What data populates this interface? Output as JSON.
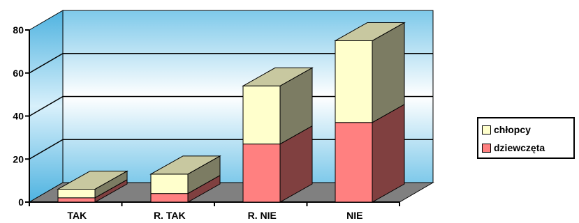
{
  "chart_data": {
    "type": "bar",
    "stacked": true,
    "three_d": true,
    "title": "",
    "xlabel": "",
    "ylabel": "",
    "categories": [
      "TAK",
      "R. TAK",
      "R. NIE",
      "NIE"
    ],
    "series": [
      {
        "name": "dziewczęta",
        "values": [
          2,
          4,
          27,
          37
        ],
        "color": "#ff8080"
      },
      {
        "name": "chłopcy",
        "values": [
          4,
          9,
          27,
          38
        ],
        "color": "#ffffcc"
      }
    ],
    "ylim": [
      0,
      80
    ],
    "yticks": [
      0,
      20,
      40,
      60,
      80
    ],
    "grid": true,
    "legend": "right",
    "colors": {
      "wall": "#87ceeb",
      "floor": "#808080",
      "top_face": "#c8c8a0"
    }
  }
}
